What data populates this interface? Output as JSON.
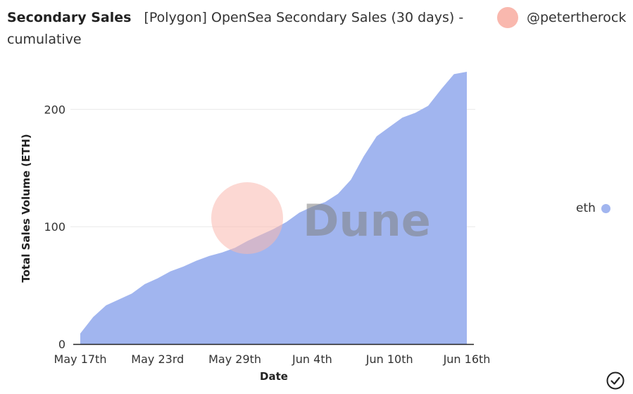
{
  "header": {
    "title": "Secondary Sales",
    "subtitle": "[Polygon] OpenSea Secondary Sales (30 days) - cumulative"
  },
  "author": {
    "name": "@petertherock"
  },
  "watermark": {
    "text": "Dune"
  },
  "legend": {
    "label": "eth",
    "color": "#a1b5ef"
  },
  "colors": {
    "area": "#a1b5ef",
    "grid": "#e9e9e9",
    "axis": "#222222",
    "text": "#333333"
  },
  "icons": {
    "status": "check-circle-icon"
  },
  "chart_data": {
    "type": "area",
    "title": "",
    "xlabel": "Date",
    "ylabel": "Total Sales Volume (ETH)",
    "x": [
      "May 17",
      "May 18",
      "May 19",
      "May 20",
      "May 21",
      "May 22",
      "May 23",
      "May 24",
      "May 25",
      "May 26",
      "May 27",
      "May 28",
      "May 29",
      "May 30",
      "May 31",
      "Jun 1",
      "Jun 2",
      "Jun 3",
      "Jun 4",
      "Jun 5",
      "Jun 6",
      "Jun 7",
      "Jun 8",
      "Jun 9",
      "Jun 10",
      "Jun 11",
      "Jun 12",
      "Jun 13",
      "Jun 14",
      "Jun 15",
      "Jun 16"
    ],
    "series": [
      {
        "name": "eth",
        "values": [
          9,
          23,
          33,
          38,
          43,
          51,
          56,
          62,
          66,
          71,
          75,
          78,
          82,
          88,
          93,
          98,
          104,
          112,
          117,
          121,
          128,
          140,
          160,
          177,
          185,
          193,
          197,
          203,
          217,
          230,
          232
        ]
      }
    ],
    "ylim": [
      0,
      240
    ],
    "yticks": [
      0,
      100,
      200
    ],
    "xtick_labels": [
      {
        "index": 0,
        "label": "May 17th"
      },
      {
        "index": 6,
        "label": "May 23rd"
      },
      {
        "index": 12,
        "label": "May 29th"
      },
      {
        "index": 18,
        "label": "Jun 4th"
      },
      {
        "index": 24,
        "label": "Jun 10th"
      },
      {
        "index": 30,
        "label": "Jun 16th"
      }
    ],
    "grid": true,
    "legend_position": "right"
  }
}
